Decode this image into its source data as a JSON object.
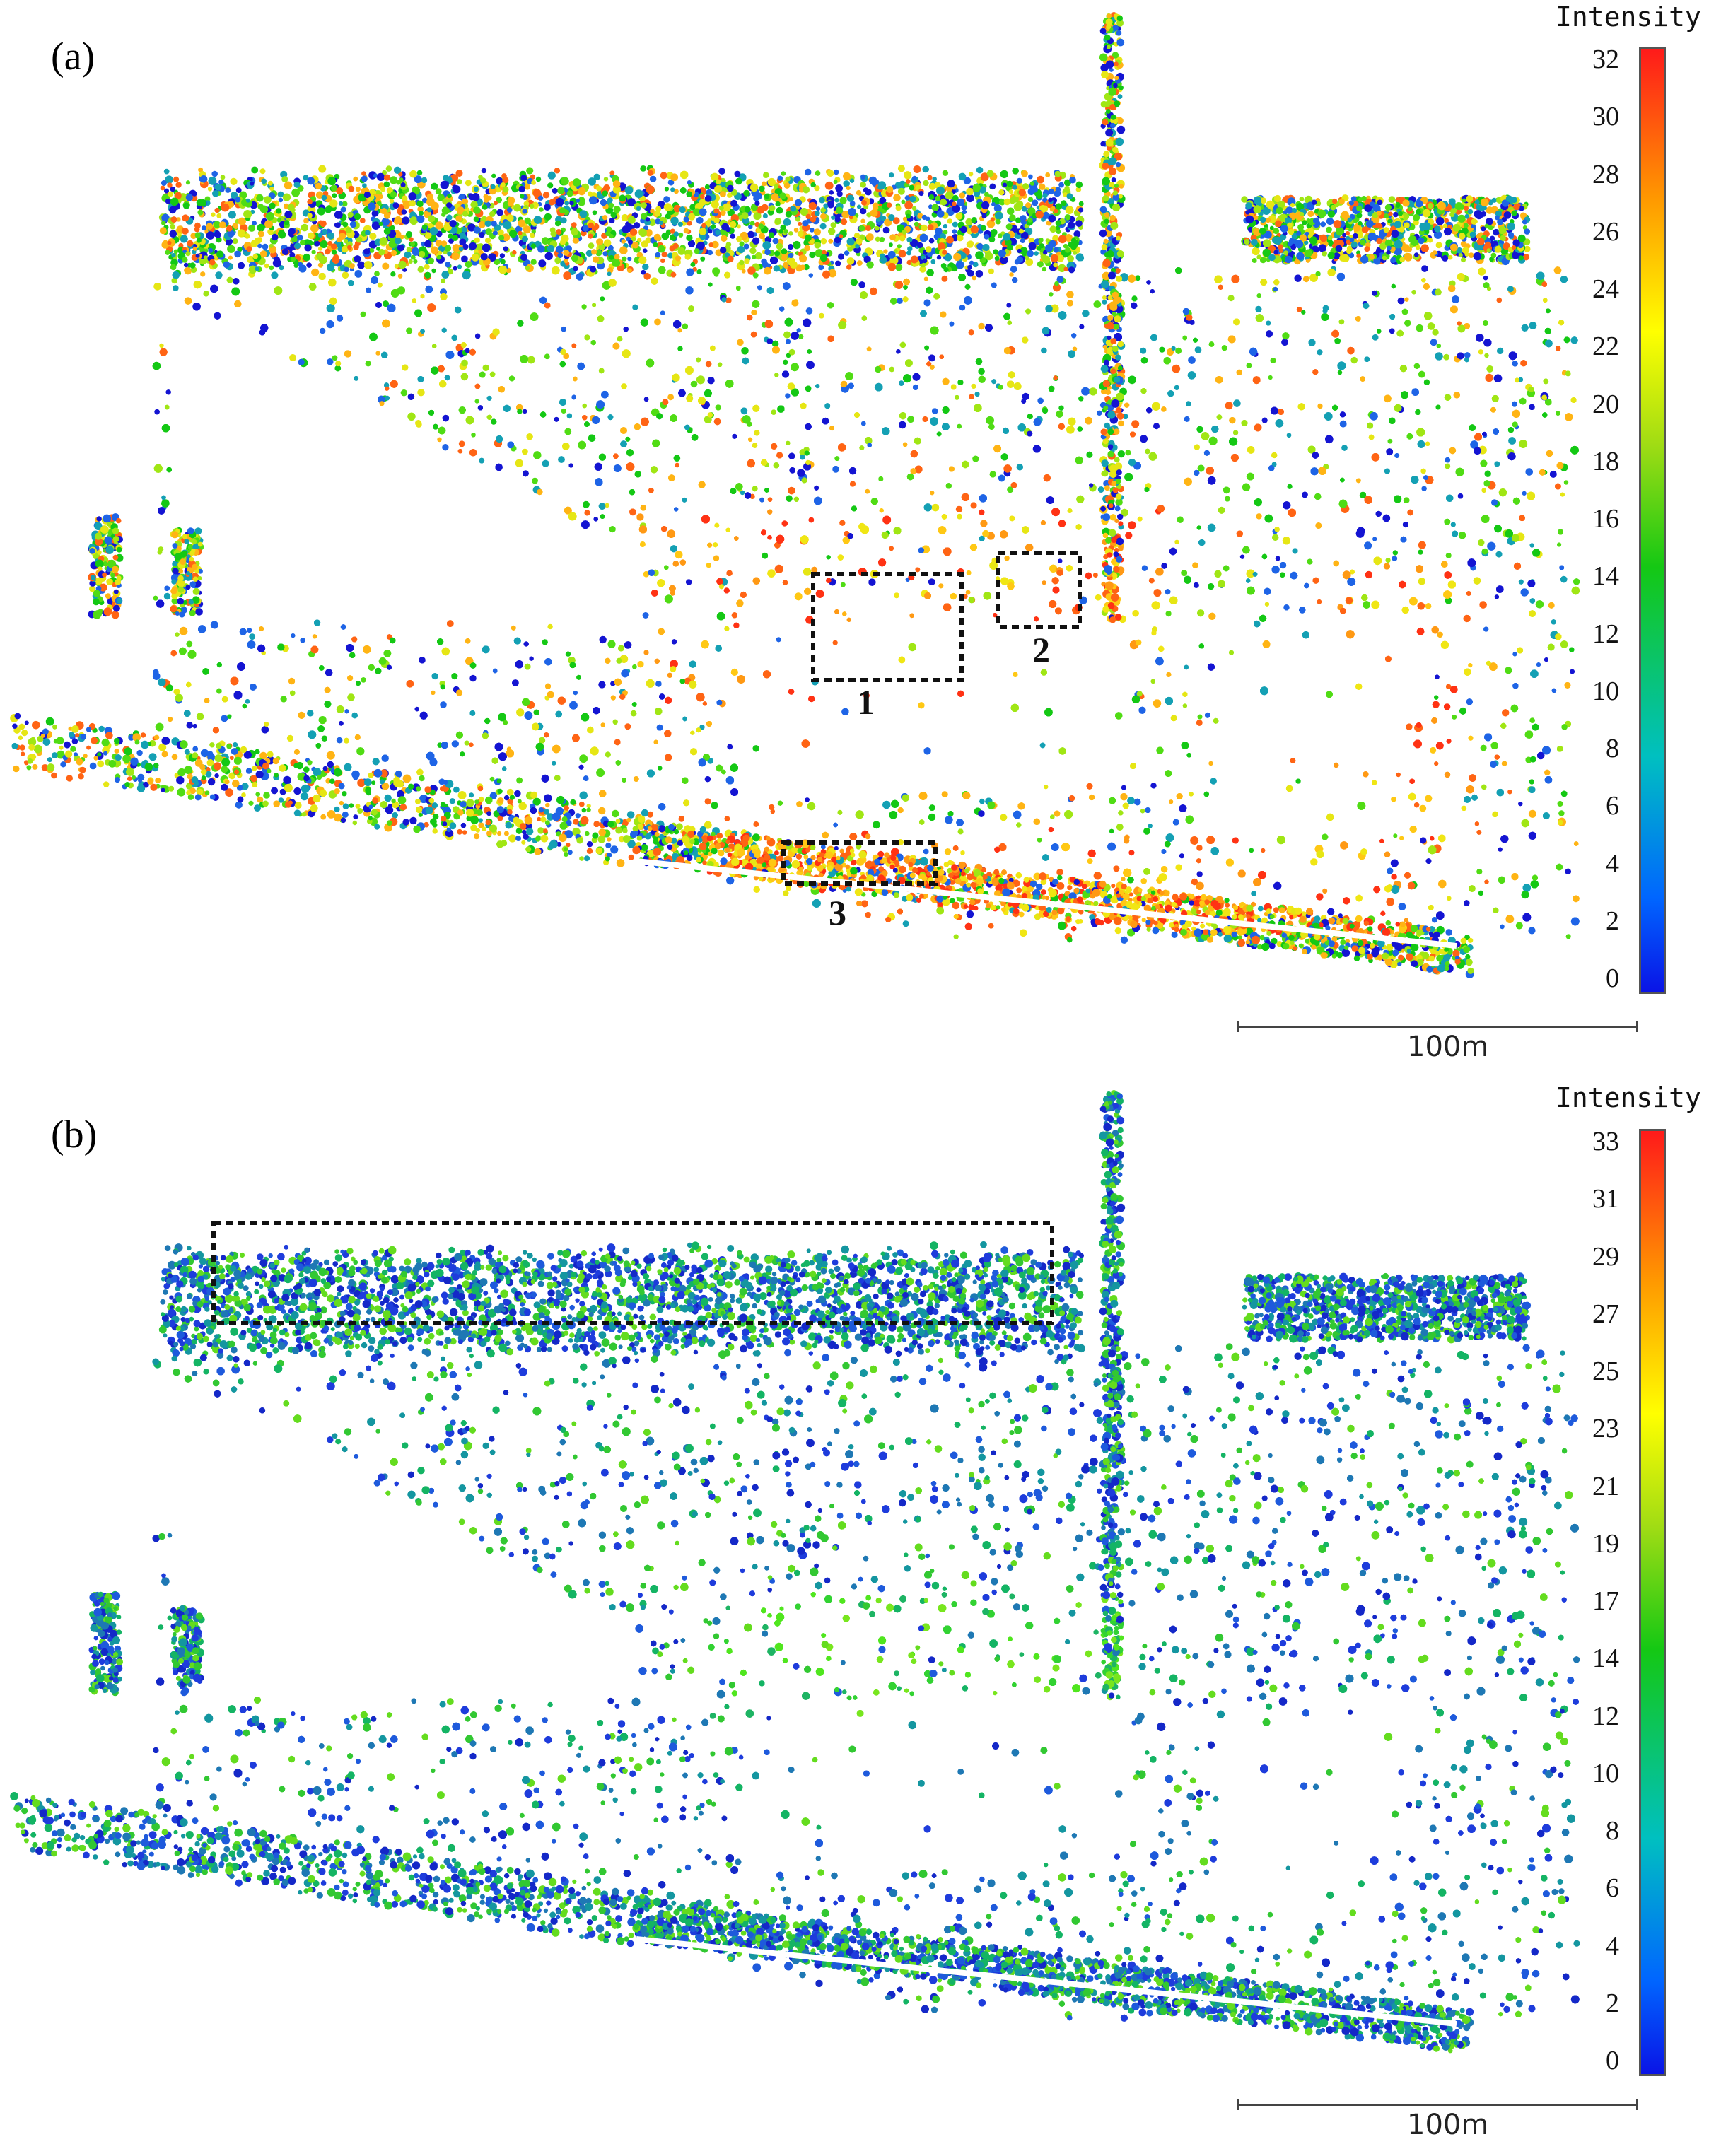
{
  "figure": {
    "panels": [
      {
        "id": "a",
        "label": "(a)",
        "colorbar_title": "Intensity",
        "colorbar_ticks": [
          "32",
          "30",
          "28",
          "26",
          "24",
          "22",
          "20",
          "18",
          "16",
          "14",
          "12",
          "10",
          "8",
          "6",
          "4",
          "2",
          "0"
        ],
        "scale_bar": "100m",
        "box_labels": [
          "1",
          "2",
          "3"
        ]
      },
      {
        "id": "b",
        "label": "(b)",
        "colorbar_title": "Intensity",
        "colorbar_ticks": [
          "33",
          "31",
          "29",
          "27",
          "25",
          "23",
          "21",
          "19",
          "17",
          "14",
          "12",
          "10",
          "8",
          "6",
          "4",
          "2",
          "0"
        ],
        "scale_bar": "100m",
        "box_labels": []
      }
    ],
    "colors": {
      "colormap": [
        "#0a14e6",
        "#0066ff",
        "#00c0c0",
        "#14c814",
        "#a0dc14",
        "#ffff00",
        "#ff9900",
        "#ff1a1a"
      ],
      "box_outline": "#111111"
    }
  }
}
